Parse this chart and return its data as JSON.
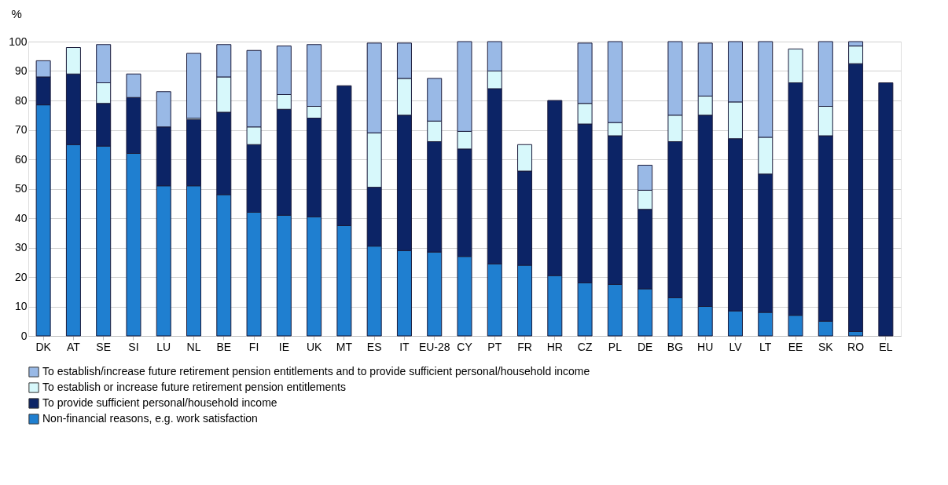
{
  "chart_data": {
    "type": "bar",
    "stacked": true,
    "ylabel": "%",
    "categories": [
      "DK",
      "AT",
      "SE",
      "SI",
      "LU",
      "NL",
      "BE",
      "FI",
      "IE",
      "UK",
      "MT",
      "ES",
      "IT",
      "EU-28",
      "CY",
      "PT",
      "FR",
      "HR",
      "CZ",
      "PL",
      "DE",
      "BG",
      "HU",
      "LV",
      "LT",
      "EE",
      "SK",
      "RO",
      "EL"
    ],
    "series": [
      {
        "name": "Non-financial reasons, e.g. work satisfaction",
        "color": "#1f7fd0",
        "values": [
          78.5,
          65,
          64.5,
          62,
          51,
          51,
          48,
          42,
          41,
          40.5,
          37.5,
          30.5,
          29,
          28.5,
          27,
          24.5,
          24,
          20.5,
          18,
          17.5,
          16,
          13,
          10,
          8.5,
          8,
          7,
          5,
          1.5,
          0
        ]
      },
      {
        "name": "To provide sufficient personal/household income",
        "color": "#0c2466",
        "values": [
          9.5,
          24,
          14.5,
          19,
          20,
          22.5,
          28,
          23,
          36,
          33.5,
          47.5,
          20,
          46,
          37.5,
          36.5,
          59.5,
          32,
          59.5,
          54,
          50.5,
          27,
          53,
          65,
          58.5,
          47,
          79,
          63,
          91,
          86
        ]
      },
      {
        "name": "To establish or increase future retirement pension entitlements",
        "color": "#d7f8fb",
        "values": [
          0,
          9,
          7,
          0,
          0,
          0.5,
          12,
          6,
          5,
          4,
          0,
          18.5,
          12.5,
          7,
          6,
          6,
          9,
          0,
          7,
          4.5,
          6.5,
          9,
          6.5,
          12.5,
          12.5,
          11.5,
          10,
          6,
          0
        ]
      },
      {
        "name": "To establish/increase future retirement pension entitlements and to provide sufficient personal/household income",
        "color": "#99b9e6",
        "values": [
          5.5,
          0,
          13,
          8,
          12,
          22,
          11,
          26,
          16.5,
          21,
          0,
          30.5,
          12,
          14.5,
          30.5,
          10,
          0,
          0,
          20.5,
          27.5,
          8.5,
          25,
          18,
          20.5,
          32.5,
          0,
          22,
          1.5,
          0
        ]
      }
    ],
    "ylim": [
      0,
      100
    ],
    "yticks": [
      0,
      10,
      20,
      30,
      40,
      50,
      60,
      70,
      80,
      90,
      100
    ],
    "grid": "y",
    "legend": "bottom"
  }
}
